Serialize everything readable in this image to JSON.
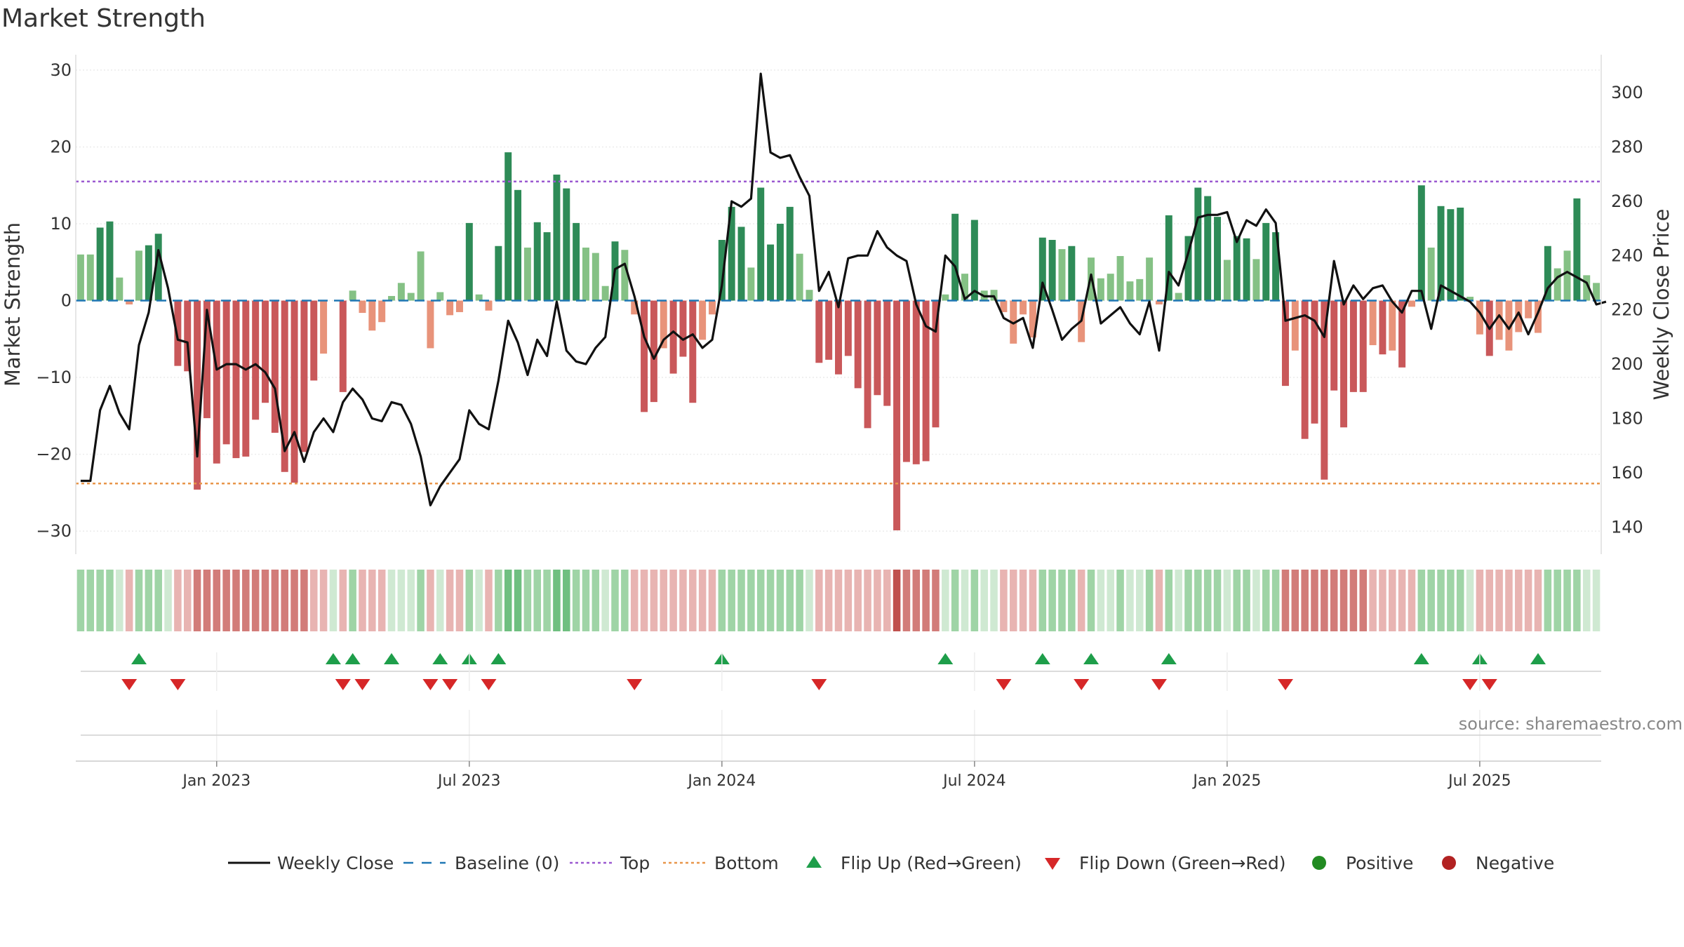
{
  "title": "Market Strength",
  "source": "source: sharemaestro.com",
  "colors": {
    "strong_green": "#2e8b57",
    "light_green": "#85c185",
    "strong_red": "#c9585a",
    "light_red": "#e8937a",
    "price_line": "#111111",
    "baseline": "#1f77b4",
    "top": "#9b59d0",
    "bottom": "#e8964a",
    "flip_up": "#1e9e4a",
    "flip_down": "#d62728",
    "positive": "#228b22",
    "negative": "#b22222"
  },
  "legend": [
    {
      "label": "Weekly Close",
      "kind": "line"
    },
    {
      "label": "Baseline (0)",
      "kind": "dash"
    },
    {
      "label": "Top",
      "kind": "dot-top"
    },
    {
      "label": "Bottom",
      "kind": "dot-bottom"
    },
    {
      "label": "Flip Up (Red→Green)",
      "kind": "tri-up"
    },
    {
      "label": "Flip Down (Green→Red)",
      "kind": "tri-down"
    },
    {
      "label": "Positive",
      "kind": "circle-pos"
    },
    {
      "label": "Negative",
      "kind": "circle-neg"
    }
  ],
  "chart_data": {
    "type": "bar",
    "title": "Market Strength",
    "xlabel": "",
    "ylabel": "Market Strength",
    "y2label": "Weekly Close Price",
    "ylim": [
      -33,
      32
    ],
    "y2lim": [
      130,
      314
    ],
    "yticks": [
      30,
      20,
      10,
      0,
      -10,
      -20,
      -30
    ],
    "y2ticks": [
      300,
      280,
      260,
      240,
      220,
      200,
      180,
      160,
      140
    ],
    "ytick_labels": [
      "30",
      "20",
      "10",
      "0",
      "−10",
      "−20",
      "−30"
    ],
    "y2tick_labels": [
      "300",
      "280",
      "260",
      "240",
      "220",
      "200",
      "180",
      "160",
      "140"
    ],
    "top_level": 15.5,
    "bottom_level": -23.8,
    "baseline": 0,
    "x_start": "2022-09-09",
    "x_end": "2025-10-24",
    "x_ticks": [
      "Jan 2023",
      "Jul 2023",
      "Jan 2024",
      "Jul 2024",
      "Jan 2025",
      "Jul 2025"
    ],
    "x_tick_week_index": [
      14,
      40,
      66,
      92,
      118,
      144
    ],
    "strength": [
      6,
      6,
      9.5,
      10.3,
      3,
      -0.5,
      6.5,
      7.2,
      8.7,
      0,
      -8.5,
      -9.2,
      -24.6,
      -15.3,
      -21.2,
      -18.7,
      -20.5,
      -20.3,
      -15.5,
      -13.3,
      -17.2,
      -22.3,
      -23.7,
      -19.7,
      -10.4,
      -6.9,
      0,
      -11.9,
      1.3,
      -1.6,
      -3.9,
      -2.8,
      0.6,
      2.3,
      1,
      6.4,
      -6.2,
      1.1,
      -1.9,
      -1.5,
      10.1,
      0.8,
      -1.3,
      7.1,
      19.3,
      14.4,
      6.9,
      10.2,
      8.9,
      16.4,
      14.6,
      10.1,
      6.9,
      6.2,
      1.9,
      7.7,
      6.6,
      -1.8,
      -14.5,
      -13.2,
      -6.2,
      -9.5,
      -7.3,
      -13.3,
      -5.1,
      -1.8,
      7.9,
      12.2,
      9.6,
      4.3,
      14.7,
      7.3,
      10,
      12.2,
      6.1,
      1.4,
      -8.1,
      -7.7,
      -9.6,
      -7.2,
      -11.4,
      -16.6,
      -12.3,
      -13.7,
      -29.9,
      -21,
      -21.3,
      -20.9,
      -16.5,
      0.8,
      11.3,
      3.5,
      10.5,
      1.3,
      1.4,
      -1.5,
      -5.6,
      -1.8,
      -4.8,
      8.2,
      7.9,
      6.7,
      7.1,
      -5.4,
      5.6,
      2.9,
      3.5,
      5.8,
      2.5,
      2.8,
      5.6,
      -0.5,
      11.1,
      1,
      8.4,
      14.7,
      13.6,
      10.9,
      5.3,
      8.4,
      8.1,
      5.4,
      10.1,
      8.9,
      -11.1,
      -6.5,
      -18,
      -16,
      -23.3,
      -11.7,
      -16.5,
      -11.9,
      -11.9,
      -5.8,
      -7,
      -6.5,
      -8.7,
      -0.8,
      15,
      6.9,
      12.3,
      11.9,
      12.1,
      0.5,
      -4.4,
      -7.2,
      -5.1,
      -6.5,
      -4.1,
      -2.3,
      -4.2,
      7.1,
      4.2,
      6.5,
      13.3,
      3.3,
      2.3
    ],
    "close": [
      157,
      157,
      183,
      192,
      182,
      176,
      207,
      219,
      242,
      228,
      209,
      208,
      166,
      220,
      198,
      200,
      200,
      198,
      200,
      197,
      191,
      168,
      175,
      164,
      175,
      180,
      175,
      186,
      191,
      187,
      180,
      179,
      186,
      185,
      178,
      166,
      148,
      155,
      160,
      165,
      183,
      178,
      176,
      194,
      216,
      208,
      196,
      209,
      203,
      223,
      205,
      201,
      200,
      206,
      210,
      235,
      237,
      225,
      210,
      202,
      209,
      212,
      209,
      211,
      206,
      209,
      229,
      260,
      258,
      261,
      307,
      278,
      276,
      277,
      269,
      262,
      227,
      234,
      221,
      239,
      240,
      240,
      249,
      243,
      240,
      238,
      222,
      214,
      212,
      240,
      236,
      224,
      227,
      225,
      225,
      217,
      215,
      217,
      206,
      230,
      220,
      209,
      213,
      216,
      233,
      215,
      218,
      221,
      215,
      211,
      223,
      205,
      234,
      229,
      241,
      254,
      255,
      255,
      256,
      245,
      253,
      251,
      257,
      252,
      216,
      217,
      218,
      216,
      210,
      238,
      222,
      229,
      224,
      228,
      229,
      223,
      219,
      227,
      227,
      213,
      229,
      227,
      225,
      223,
      219,
      213,
      218,
      213,
      219,
      211,
      219,
      228,
      232,
      234,
      232,
      230,
      222,
      223
    ],
    "flip_up_weeks": [
      6,
      26,
      28,
      32,
      37,
      40,
      43,
      66,
      89,
      99,
      104,
      112,
      138,
      144,
      150
    ],
    "flip_down_weeks": [
      5,
      10,
      27,
      29,
      36,
      38,
      42,
      57,
      76,
      95,
      103,
      111,
      124,
      143,
      145
    ],
    "regime_strip": [
      1,
      1,
      1,
      1,
      0,
      -1,
      1,
      1,
      1,
      0,
      -1,
      -1,
      -2,
      -2,
      -2,
      -2,
      -2,
      -2,
      -2,
      -2,
      -2,
      -2,
      -2,
      -2,
      -1,
      -1,
      0,
      -1,
      1,
      -1,
      -1,
      -1,
      0,
      0,
      0,
      1,
      -1,
      0,
      -1,
      -1,
      1,
      0,
      -1,
      1,
      2,
      2,
      1,
      1,
      1,
      2,
      2,
      1,
      1,
      1,
      0,
      1,
      1,
      -1,
      -1,
      -1,
      -1,
      -1,
      -1,
      -1,
      -1,
      -1,
      1,
      1,
      1,
      1,
      1,
      1,
      1,
      1,
      1,
      0,
      -1,
      -1,
      -1,
      -1,
      -1,
      -1,
      -1,
      -1,
      -3,
      -2,
      -2,
      -2,
      -2,
      0,
      1,
      0,
      1,
      0,
      0,
      -1,
      -1,
      -1,
      -1,
      1,
      1,
      1,
      1,
      -1,
      1,
      0,
      0,
      1,
      0,
      0,
      1,
      -1,
      1,
      0,
      1,
      1,
      1,
      1,
      0,
      1,
      1,
      0,
      1,
      1,
      -2,
      -2,
      -2,
      -2,
      -2,
      -2,
      -2,
      -2,
      -2,
      -1,
      -1,
      -1,
      -1,
      -1,
      1,
      1,
      1,
      1,
      1,
      0,
      -1,
      -1,
      -1,
      -1,
      -1,
      -1,
      -1,
      1,
      1,
      1,
      1,
      0,
      0
    ]
  }
}
